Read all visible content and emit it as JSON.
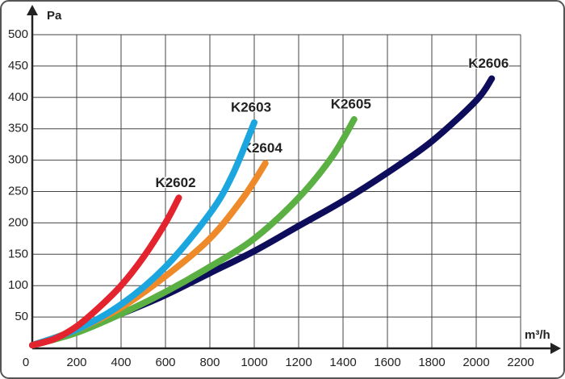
{
  "chart_data": {
    "type": "line",
    "y_label": "Pa",
    "x_label": "m³/h",
    "xlim": [
      0,
      2200
    ],
    "ylim": [
      0,
      500
    ],
    "xticks": [
      0,
      200,
      400,
      600,
      800,
      1000,
      1200,
      1400,
      1600,
      1800,
      2000,
      2200
    ],
    "yticks": [
      50,
      100,
      150,
      200,
      250,
      300,
      350,
      400,
      450,
      500
    ],
    "grid": true,
    "series": [
      {
        "name": "K2606",
        "color": "#0d0d5c",
        "x": [
          0,
          200,
          400,
          600,
          800,
          1000,
          1200,
          1400,
          1600,
          1800,
          2000,
          2070
        ],
        "values": [
          5,
          28,
          55,
          85,
          120,
          155,
          195,
          235,
          280,
          330,
          395,
          430
        ]
      },
      {
        "name": "K2605",
        "color": "#5bb043",
        "x": [
          0,
          200,
          400,
          600,
          800,
          1000,
          1200,
          1350,
          1450
        ],
        "values": [
          5,
          25,
          55,
          90,
          130,
          175,
          240,
          305,
          365
        ]
      },
      {
        "name": "K2604",
        "color": "#ee8a2a",
        "x": [
          0,
          200,
          400,
          600,
          800,
          950,
          1050
        ],
        "values": [
          5,
          30,
          65,
          115,
          175,
          240,
          295
        ]
      },
      {
        "name": "K2603",
        "color": "#1ca6df",
        "x": [
          0,
          200,
          400,
          600,
          800,
          900,
          1000
        ],
        "values": [
          5,
          30,
          70,
          130,
          215,
          275,
          360
        ]
      },
      {
        "name": "K2602",
        "color": "#e3242e",
        "x": [
          0,
          100,
          200,
          300,
          400,
          500,
          600,
          660
        ],
        "values": [
          5,
          15,
          35,
          65,
          100,
          145,
          200,
          240
        ]
      }
    ]
  }
}
